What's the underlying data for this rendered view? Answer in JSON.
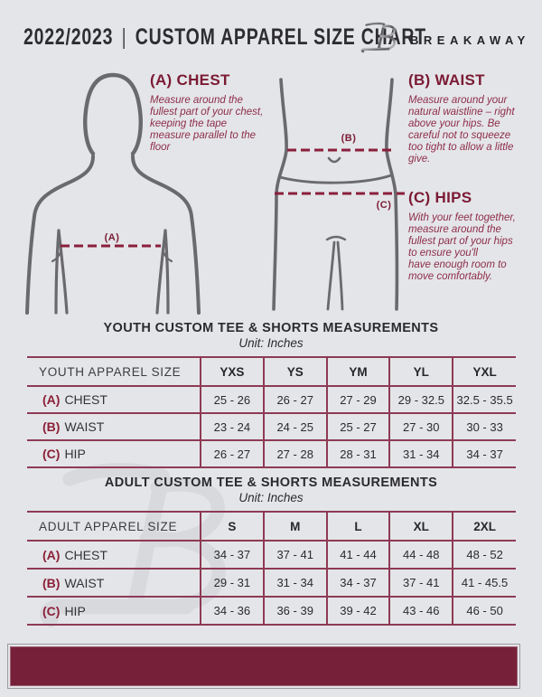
{
  "header": {
    "year": "2022/2023",
    "divider": "|",
    "title": "CUSTOM APPAREL SIZE CHART",
    "brand": "BREAKAWAY",
    "logo_letter": "B"
  },
  "guide": {
    "chest": {
      "heading": "(A) CHEST",
      "body": "Measure around the fullest part of your chest, keeping the tape measure parallel to the floor",
      "marker": "(A)"
    },
    "waist": {
      "heading": "(B) WAIST",
      "body": "Measure around your natural waistline – right above your hips. Be careful not to squeeze too tight to allow a little give.",
      "marker": "(B)"
    },
    "hips": {
      "heading": "(C) HIPS",
      "body": "With your feet together, measure around the fullest part of your hips to ensure you'll\nhave enough room to move comfortably.",
      "marker": "(C)"
    }
  },
  "youth_table": {
    "title": "YOUTH CUSTOM TEE & SHORTS MEASUREMENTS",
    "unit": "Unit: Inches",
    "header": [
      "YOUTH APPAREL SIZE",
      "YXS",
      "YS",
      "YM",
      "YL",
      "YXL"
    ],
    "rows": [
      {
        "prefix": "(A)",
        "label": "CHEST",
        "values": [
          "25 - 26",
          "26 - 27",
          "27 - 29",
          "29 - 32.5",
          "32.5 - 35.5"
        ]
      },
      {
        "prefix": "(B)",
        "label": "WAIST",
        "values": [
          "23 - 24",
          "24 - 25",
          "25 - 27",
          "27 - 30",
          "30 - 33"
        ]
      },
      {
        "prefix": "(C)",
        "label": "HIP",
        "values": [
          "26 - 27",
          "27 - 28",
          "28 - 31",
          "31 - 34",
          "34 - 37"
        ]
      }
    ]
  },
  "adult_table": {
    "title": "ADULT CUSTOM TEE & SHORTS MEASUREMENTS",
    "unit": "Unit: Inches",
    "header": [
      "ADULT APPAREL SIZE",
      "S",
      "M",
      "L",
      "XL",
      "2XL"
    ],
    "rows": [
      {
        "prefix": "(A)",
        "label": "CHEST",
        "values": [
          "34 - 37",
          "37 - 41",
          "41 - 44",
          "44 - 48",
          "48 - 52"
        ]
      },
      {
        "prefix": "(B)",
        "label": "WAIST",
        "values": [
          "29 - 31",
          "31 - 34",
          "34 - 37",
          "37 - 41",
          "41 - 45.5"
        ]
      },
      {
        "prefix": "(C)",
        "label": "HIP",
        "values": [
          "34 - 36",
          "36 - 39",
          "39 - 42",
          "43 - 46",
          "46 - 50"
        ]
      }
    ]
  },
  "colors": {
    "bg": "#e4e5e8",
    "ink": "#2d2d30",
    "maroon_dark": "#76203a",
    "maroon_text": "#8d2d49",
    "maroon_line": "#8a1f3c",
    "border_line": "#8e3a55",
    "figure_gray": "#6a6a6e",
    "watermark": "#d7d8dc"
  }
}
